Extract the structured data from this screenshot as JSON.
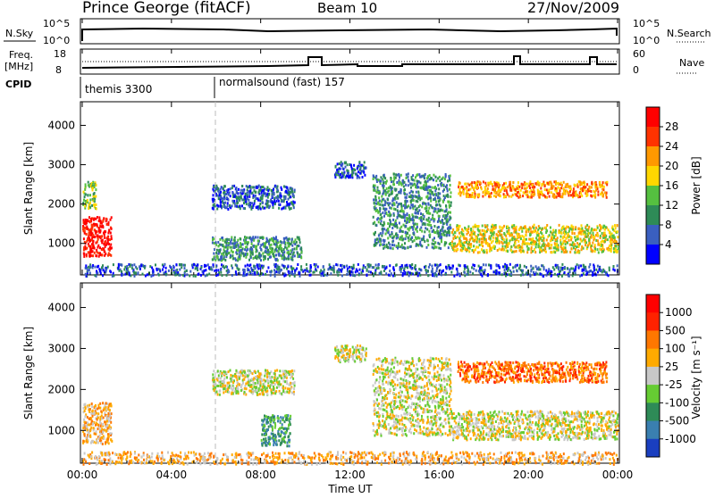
{
  "header": {
    "site": "Prince George (fitACF)",
    "beam": "Beam 10",
    "date": "27/Nov/2009"
  },
  "noise_panel": {
    "left_label": "N.Sky",
    "left_ticks": [
      "10^5",
      "10^0"
    ],
    "right_label": "N.Search",
    "right_ticks": [
      "10^5",
      "10^0"
    ]
  },
  "freq_panel": {
    "left_label_1": "Freq.",
    "left_label_2": "[MHz]",
    "left_ticks": [
      "18",
      "8"
    ],
    "right_label": "Nave",
    "right_ticks": [
      "60",
      "0"
    ]
  },
  "cpid_panel": {
    "label": "CPID",
    "entries": [
      "themis 3300",
      "normalsound (fast) 157"
    ]
  },
  "power_panel": {
    "ylabel": "Slant Range [km]",
    "yticks": [
      "4000",
      "3000",
      "2000",
      "1000"
    ],
    "colorbar_label": "Power [dB]",
    "colorbar_ticks": [
      "28",
      "24",
      "20",
      "16",
      "12",
      "8",
      "4"
    ],
    "colors": [
      "#0000ff",
      "#3a5fc0",
      "#2e8b57",
      "#55c040",
      "#ffd700",
      "#ff9900",
      "#ff3300",
      "#ff0000"
    ]
  },
  "velocity_panel": {
    "ylabel": "Slant Range [km]",
    "yticks": [
      "4000",
      "3000",
      "2000",
      "1000"
    ],
    "colorbar_label": "Velocity [m s⁻¹]",
    "colorbar_ticks": [
      "1000",
      "500",
      "100",
      "25",
      "-25",
      "-100",
      "-500",
      "-1000"
    ],
    "colors": [
      "#1a3fc0",
      "#3a7fb0",
      "#2e8b57",
      "#66cc33",
      "#c8c8c8",
      "#ffaa00",
      "#ff7700",
      "#ff2200",
      "#ff0000"
    ]
  },
  "x_axis": {
    "label": "Time UT",
    "ticks": [
      "00:00",
      "04:00",
      "08:00",
      "12:00",
      "16:00",
      "20:00",
      "00:00"
    ]
  },
  "chart_data": {
    "type": "heatmap",
    "title": "Prince George (fitACF)",
    "xlabel": "Time UT",
    "ylabel": "Slant Range [km]",
    "xlim": [
      0,
      24
    ],
    "ylim": [
      200,
      4600
    ],
    "cpid_change_hour": 6.0,
    "power_regions": [
      {
        "t": [
          0.0,
          1.3
        ],
        "r": [
          700,
          1700
        ],
        "level": 7
      },
      {
        "t": [
          0.0,
          0.6
        ],
        "r": [
          1900,
          2600
        ],
        "level": 3
      },
      {
        "t": [
          5.8,
          9.5
        ],
        "r": [
          1900,
          2500
        ],
        "level": 1
      },
      {
        "t": [
          5.8,
          9.8
        ],
        "r": [
          600,
          1200
        ],
        "level": 2
      },
      {
        "t": [
          11.3,
          12.7
        ],
        "r": [
          2700,
          3100
        ],
        "level": 1
      },
      {
        "t": [
          13.0,
          16.5
        ],
        "r": [
          900,
          2800
        ],
        "level": 2
      },
      {
        "t": [
          16.8,
          23.5
        ],
        "r": [
          2200,
          2600
        ],
        "level": 5
      },
      {
        "t": [
          16.5,
          24.0
        ],
        "r": [
          800,
          1500
        ],
        "level": 4
      },
      {
        "t": [
          0.0,
          24.0
        ],
        "r": [
          200,
          500
        ],
        "level": 1
      }
    ],
    "velocity_regions": [
      {
        "t": [
          0.0,
          1.3
        ],
        "r": [
          700,
          1700
        ],
        "level": 5
      },
      {
        "t": [
          5.8,
          9.5
        ],
        "r": [
          1900,
          2500
        ],
        "level": 4
      },
      {
        "t": [
          8.0,
          9.3
        ],
        "r": [
          650,
          1400
        ],
        "level": 2
      },
      {
        "t": [
          11.3,
          12.7
        ],
        "r": [
          2700,
          3100
        ],
        "level": 4
      },
      {
        "t": [
          13.0,
          16.5
        ],
        "r": [
          900,
          2800
        ],
        "level": 4
      },
      {
        "t": [
          16.8,
          23.5
        ],
        "r": [
          2200,
          2700
        ],
        "level": 6
      },
      {
        "t": [
          16.5,
          24.0
        ],
        "r": [
          800,
          1500
        ],
        "level": 4
      },
      {
        "t": [
          0.0,
          24.0
        ],
        "r": [
          200,
          500
        ],
        "level": 5
      }
    ]
  }
}
